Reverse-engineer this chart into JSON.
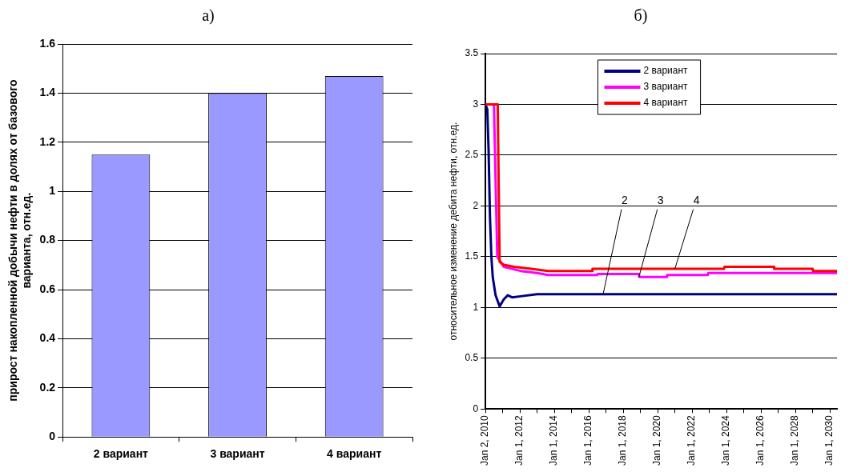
{
  "chart_data": [
    {
      "type": "bar",
      "title": "а)",
      "ylabel": "прирост накопленной добычи нефти в долях от базового варианта, отн.ед.",
      "categories": [
        "2 вариант",
        "3 вариант",
        "4 вариант"
      ],
      "values": [
        1.15,
        1.4,
        1.47
      ],
      "color": "#9999ff",
      "ylim": [
        0,
        1.6
      ],
      "yticks": [
        0,
        0.2,
        0.4,
        0.6,
        0.8,
        1,
        1.2,
        1.4,
        1.6
      ],
      "grid": "y"
    },
    {
      "type": "line",
      "title": "б)",
      "ylabel": "относительное изменение дебита нефти, отн.ед.",
      "xlim": [
        "2010-01-02",
        "2030-06-01"
      ],
      "xticks": [
        {
          "value": "2010-01-02",
          "label": "Jan 2, 2010"
        },
        {
          "value": "2011-01-01",
          "label": null
        },
        {
          "value": "2012-01-01",
          "label": "Jan 1, 2012"
        },
        {
          "value": "2013-01-01",
          "label": null
        },
        {
          "value": "2014-01-01",
          "label": "Jan 1, 2014"
        },
        {
          "value": "2015-01-01",
          "label": null
        },
        {
          "value": "2016-01-01",
          "label": "Jan 1, 2016"
        },
        {
          "value": "2017-01-01",
          "label": null
        },
        {
          "value": "2018-01-01",
          "label": "Jan 1, 2018"
        },
        {
          "value": "2019-01-01",
          "label": null
        },
        {
          "value": "2020-01-01",
          "label": "Jan 1, 2020"
        },
        {
          "value": "2021-01-01",
          "label": null
        },
        {
          "value": "2022-01-01",
          "label": "Jan 1, 2022"
        },
        {
          "value": "2023-01-01",
          "label": null
        },
        {
          "value": "2024-01-01",
          "label": "Jan 1, 2024"
        },
        {
          "value": "2025-01-01",
          "label": null
        },
        {
          "value": "2026-01-01",
          "label": "Jan 1, 2026"
        },
        {
          "value": "2027-01-01",
          "label": null
        },
        {
          "value": "2028-01-01",
          "label": "Jan 1, 2028"
        },
        {
          "value": "2029-01-01",
          "label": null
        },
        {
          "value": "2030-01-01",
          "label": "Jan 1, 2030"
        }
      ],
      "ylim": [
        0,
        3.5
      ],
      "yticks": [
        0,
        0.5,
        1,
        1.5,
        2,
        2.5,
        3,
        3.5
      ],
      "grid": "y",
      "legend": "top",
      "series": [
        {
          "name": "2 вариант",
          "color": "#000080",
          "x": [
            "2010-01-02",
            "2010-02-10",
            "2010-03-10",
            "2010-04-08",
            "2010-05-08",
            "2010-06-06",
            "2010-08-05",
            "2010-10-30",
            "2011-01-25",
            "2011-04-20",
            "2011-07-20",
            "2012-01-15",
            "2013-01-01",
            "2030-06-01"
          ],
          "values": [
            3.0,
            2.95,
            2.55,
            1.9,
            1.5,
            1.3,
            1.12,
            1.01,
            1.08,
            1.12,
            1.1,
            1.11,
            1.13,
            1.13
          ]
        },
        {
          "name": "3 вариант",
          "color": "#ff00ff",
          "x": [
            "2010-01-02",
            "2010-07-01",
            "2010-09-10",
            "2011-01-25",
            "2012-01-15",
            "2013-01-01",
            "2013-08-20",
            "2016-07-01",
            "2016-07-10",
            "2018-12-01",
            "2018-12-10",
            "2020-07-10",
            "2020-07-20",
            "2022-12-01",
            "2022-12-10",
            "2030-06-01"
          ],
          "values": [
            3.0,
            3.0,
            1.5,
            1.4,
            1.36,
            1.34,
            1.32,
            1.32,
            1.33,
            1.33,
            1.3,
            1.3,
            1.32,
            1.32,
            1.34,
            1.34
          ]
        },
        {
          "name": "4 вариант",
          "color": "#ff0000",
          "x": [
            "2010-01-02",
            "2010-09-20",
            "2010-10-30",
            "2011-01-25",
            "2011-09-01",
            "2012-09-01",
            "2013-08-20",
            "2016-03-10",
            "2016-03-20",
            "2023-11-10",
            "2023-11-20",
            "2026-10-01",
            "2026-10-10",
            "2029-01-01",
            "2029-01-10",
            "2030-06-01"
          ],
          "values": [
            3.0,
            3.0,
            1.45,
            1.42,
            1.4,
            1.38,
            1.36,
            1.36,
            1.38,
            1.38,
            1.4,
            1.4,
            1.38,
            1.38,
            1.36,
            1.36
          ]
        }
      ],
      "annotations": [
        {
          "text": "2",
          "x": "2016-11-01",
          "y": 1.13
        },
        {
          "text": "3",
          "x": "2018-12-01",
          "y": 1.3
        },
        {
          "text": "4",
          "x": "2021-01-01",
          "y": 1.38
        }
      ]
    }
  ]
}
